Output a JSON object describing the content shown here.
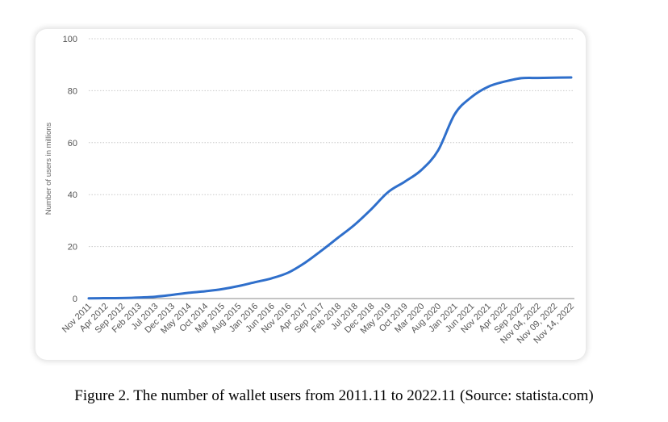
{
  "caption": "Figure 2. The number of wallet users from 2011.11  to 2022.11  (Source: statista.com)",
  "chart_data": {
    "type": "line",
    "title": "",
    "xlabel": "",
    "ylabel": "Number of users in millions",
    "ylim": [
      0,
      100
    ],
    "yticks": [
      0,
      20,
      40,
      60,
      80,
      100
    ],
    "grid": "horizontal dotted",
    "legend": "none",
    "line_color": "#2f6fcb",
    "categories": [
      "Nov 2011",
      "Apr 2012",
      "Sep 2012",
      "Feb 2013",
      "Jul 2013",
      "Dec 2013",
      "May 2014",
      "Oct 2014",
      "Mar 2015",
      "Aug 2015",
      "Jan 2016",
      "Jun 2016",
      "Nov 2016",
      "Apr 2017",
      "Sep 2017",
      "Feb 2018",
      "Jul 2018",
      "Dec 2018",
      "May 2019",
      "Oct 2019",
      "Mar 2020",
      "Aug 2020",
      "Jan 2021",
      "Jun 2021",
      "Nov 2021",
      "Apr 2022",
      "Sep 2022",
      "Nov 04, 2022",
      "Nov 09, 2022",
      "Nov 14, 2022"
    ],
    "series": [
      {
        "values": [
          0.1,
          0.15,
          0.2,
          0.4,
          0.7,
          1.4,
          2.2,
          2.8,
          3.6,
          4.8,
          6.3,
          7.8,
          10.0,
          13.8,
          18.5,
          23.5,
          28.5,
          34.5,
          41.0,
          45.0,
          49.5,
          57.0,
          71.0,
          77.5,
          81.5,
          83.5,
          84.8,
          84.9,
          85.0,
          85.1
        ]
      }
    ]
  }
}
